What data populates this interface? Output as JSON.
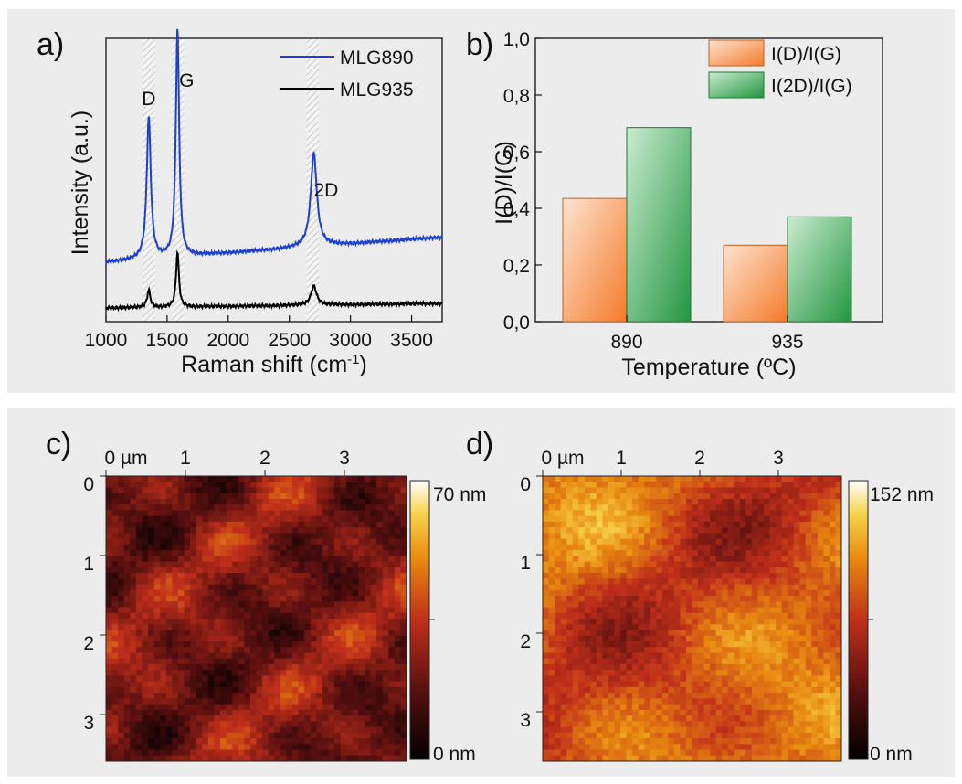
{
  "panels": {
    "a": "a)",
    "b": "b)",
    "c": "c)",
    "d": "d)"
  },
  "colors": {
    "mlg890": "#1f3fcf",
    "mlg935": "#000000",
    "idig": "#f5843a",
    "i2dig": "#2e9e47"
  },
  "chart_data": [
    {
      "type": "line",
      "xlabel": "Raman shift (cm",
      "xlabel_sup": "-1",
      "xlabel_end": ")",
      "ylabel": "Intensity (a.u.)",
      "xlim": [
        1000,
        3750
      ],
      "xticks": [
        1000,
        1500,
        2000,
        2500,
        3000,
        3500
      ],
      "grid": false,
      "legend_position": "top-right",
      "annotations": [
        {
          "text": "D",
          "x": 1350
        },
        {
          "text": "G",
          "x": 1660
        },
        {
          "text": "2D",
          "x": 2800
        }
      ],
      "shaded_bands": [
        [
          1300,
          1400
        ],
        [
          1540,
          1640
        ],
        [
          2640,
          2740
        ]
      ],
      "series": [
        {
          "name": "MLG890",
          "color": "#1f3fcf",
          "baseline_start": 0.22,
          "baseline_end": 0.33,
          "peaks": [
            {
              "center": 1350,
              "height": 0.62,
              "width": 20
            },
            {
              "center": 1585,
              "height": 1.0,
              "width": 16
            },
            {
              "center": 2700,
              "height": 0.41,
              "width": 30
            }
          ]
        },
        {
          "name": "MLG935",
          "color": "#000000",
          "baseline_start": 0.02,
          "baseline_end": 0.04,
          "peaks": [
            {
              "center": 1350,
              "height": 0.075,
              "width": 16
            },
            {
              "center": 1585,
              "height": 0.24,
              "width": 14
            },
            {
              "center": 2700,
              "height": 0.083,
              "width": 28
            }
          ]
        }
      ]
    },
    {
      "type": "bar",
      "categories": [
        "890",
        "935"
      ],
      "xlabel": "Temperature (ºC)",
      "ylabel": "I(D)/I(G)",
      "ylim": [
        0,
        1.0
      ],
      "yticks": [
        "0,0",
        "0,2",
        "0,4",
        "0,6",
        "0,8",
        "1,0"
      ],
      "grid": false,
      "legend_position": "top-right",
      "series": [
        {
          "name": "I(D)/I(G)",
          "color": "#f5843a",
          "values": [
            0.435,
            0.27
          ]
        },
        {
          "name": "I(2D)/I(G)",
          "color": "#2e9e47",
          "values": [
            0.685,
            0.37
          ]
        }
      ]
    },
    {
      "type": "heatmap",
      "xticks": [
        "0 µm",
        "1",
        "2",
        "3"
      ],
      "yticks": [
        "0",
        "1",
        "2",
        "3"
      ],
      "scale_max_label": "70 nm",
      "scale_min_label": "0 nm",
      "mean_level": 0.33
    },
    {
      "type": "heatmap",
      "xticks": [
        "0 µm",
        "1",
        "2",
        "3"
      ],
      "yticks": [
        "0",
        "1",
        "2",
        "3"
      ],
      "scale_max_label": "152 nm",
      "scale_min_label": "0 nm",
      "mean_level": 0.6
    }
  ]
}
